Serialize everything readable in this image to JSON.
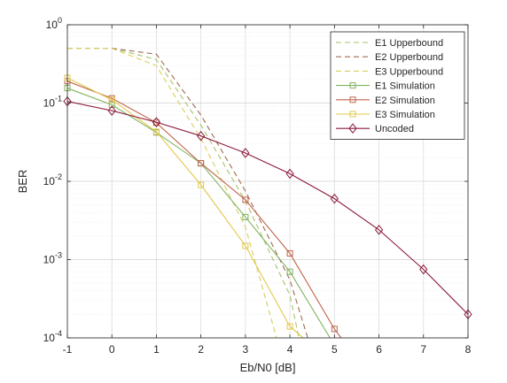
{
  "chart_data": {
    "type": "line",
    "title": "",
    "xlabel": "Eb/N0 [dB]",
    "ylabel": "BER",
    "xlim": [
      -1,
      8
    ],
    "ylim": [
      0.0001,
      1
    ],
    "yscale": "log",
    "grid": true,
    "legend_position": "top-right",
    "x_ticks": [
      "-1",
      "0",
      "1",
      "2",
      "3",
      "4",
      "5",
      "6",
      "7",
      "8"
    ],
    "y_ticks": [
      {
        "base": "10",
        "exp": "0",
        "value": 1
      },
      {
        "base": "10",
        "exp": "-1",
        "value": 0.1
      },
      {
        "base": "10",
        "exp": "-2",
        "value": 0.01
      },
      {
        "base": "10",
        "exp": "-3",
        "value": 0.001
      },
      {
        "base": "10",
        "exp": "-4",
        "value": 0.0001
      }
    ],
    "series": [
      {
        "name": "E1 Upperbound",
        "color": "#a6c36a",
        "style": "dashed",
        "marker": "none",
        "x": [
          -1,
          0,
          1,
          2,
          3,
          4,
          4.2
        ],
        "y": [
          0.5,
          0.5,
          0.36,
          0.052,
          0.0056,
          0.00035,
          0.0001
        ]
      },
      {
        "name": "E2 Upperbound",
        "color": "#a06a50",
        "style": "dashed",
        "marker": "none",
        "x": [
          -1,
          0,
          1,
          2,
          3,
          4,
          4.4
        ],
        "y": [
          0.5,
          0.5,
          0.42,
          0.07,
          0.0075,
          0.00055,
          0.0001
        ]
      },
      {
        "name": "E3 Upperbound",
        "color": "#d8cf5a",
        "style": "dashed",
        "marker": "none",
        "x": [
          -1,
          0,
          1,
          2,
          3,
          3.7
        ],
        "y": [
          0.5,
          0.5,
          0.3,
          0.035,
          0.0026,
          0.0001
        ]
      },
      {
        "name": "E1 Simulation",
        "color": "#7fb35e",
        "style": "solid",
        "marker": "square",
        "x": [
          -1,
          0,
          1,
          2,
          3,
          4,
          4.9
        ],
        "y": [
          0.155,
          0.095,
          0.042,
          0.017,
          0.0035,
          0.0007,
          0.0001
        ]
      },
      {
        "name": "E2 Simulation",
        "color": "#c0644a",
        "style": "solid",
        "marker": "square",
        "x": [
          -1,
          0,
          1,
          2,
          3,
          4,
          5,
          5.15
        ],
        "y": [
          0.19,
          0.115,
          0.056,
          0.017,
          0.0058,
          0.0012,
          0.00013,
          0.0001
        ]
      },
      {
        "name": "E3 Simulation",
        "color": "#e3c84a",
        "style": "solid",
        "marker": "square",
        "x": [
          -1,
          0,
          1,
          2,
          3,
          4,
          4.3
        ],
        "y": [
          0.21,
          0.11,
          0.043,
          0.009,
          0.0015,
          0.00014,
          0.0001
        ]
      },
      {
        "name": "Uncoded",
        "color": "#8b1a3a",
        "style": "solid",
        "marker": "diamond",
        "x": [
          -1,
          0,
          1,
          2,
          3,
          4,
          5,
          6,
          7,
          8
        ],
        "y": [
          0.105,
          0.08,
          0.057,
          0.038,
          0.023,
          0.0125,
          0.006,
          0.0024,
          0.00075,
          0.0002
        ]
      }
    ]
  }
}
